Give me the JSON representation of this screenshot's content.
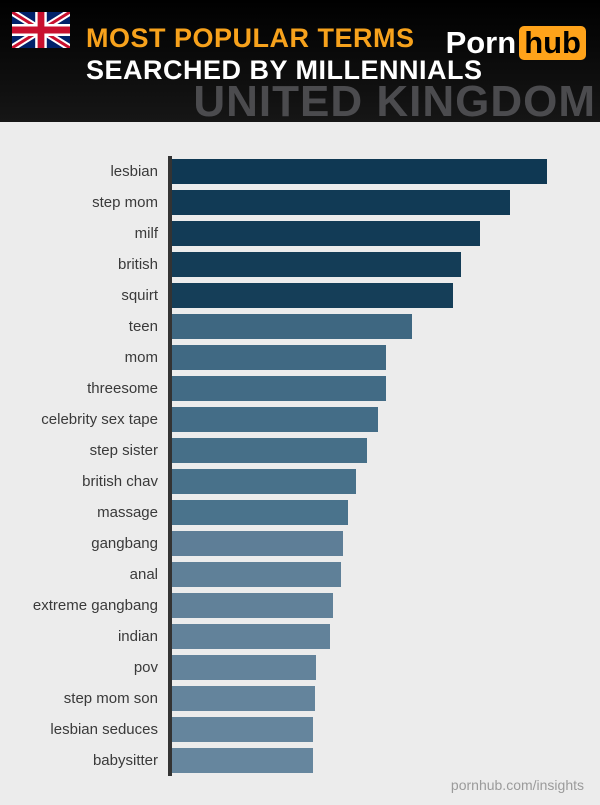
{
  "header": {
    "title_line1": "MOST POPULAR TERMS",
    "title_line2": "SEARCHED BY MILLENNIALS",
    "watermark": "UNITED KINGDOM",
    "logo": {
      "part1": "Porn",
      "part2": "hub"
    },
    "icons": {
      "flag": "uk-flag-icon"
    }
  },
  "footer": {
    "credit": "pornhub.com/insights"
  },
  "colors": {
    "accent_orange": "#f7a21c",
    "logo_box_orange": "#ffa31a",
    "header_bg": "#0d0d0d",
    "chart_bg": "#ececec",
    "axis": "#333333",
    "label_text": "#3a3a3a",
    "watermark_text": "#4b4b4e",
    "footer_text": "#9b9b9b"
  },
  "chart_data": {
    "type": "bar",
    "orientation": "horizontal",
    "title": "Most Popular Terms Searched by Millennials - United Kingdom",
    "categories": [
      "lesbian",
      "step mom",
      "milf",
      "british",
      "squirt",
      "teen",
      "mom",
      "threesome",
      "celebrity sex tape",
      "step sister",
      "british chav",
      "massage",
      "gangbang",
      "anal",
      "extreme gangbang",
      "indian",
      "pov",
      "step mom son",
      "lesbian seduces",
      "babysitter"
    ],
    "values": [
      100,
      90,
      82,
      77,
      75,
      64,
      57,
      57,
      55,
      52,
      49,
      47,
      45.5,
      45,
      43,
      42,
      38.5,
      38,
      37.5,
      37.5
    ],
    "value_note": "relative bar length, % of longest bar (estimated from pixels; no numeric labels shown)",
    "bar_colors": [
      "#0f3853",
      "#113a55",
      "#123b56",
      "#143d57",
      "#153e58",
      "#3e6781",
      "#406983",
      "#426b85",
      "#446d87",
      "#466f88",
      "#48718a",
      "#4a738c",
      "#5e7e97",
      "#5f8098",
      "#618199",
      "#62829a",
      "#63839b",
      "#64849c",
      "#65859d",
      "#66869e"
    ],
    "xlim": [
      0,
      100
    ],
    "grid": false,
    "legend": false,
    "axis_line": "left-vertical"
  }
}
